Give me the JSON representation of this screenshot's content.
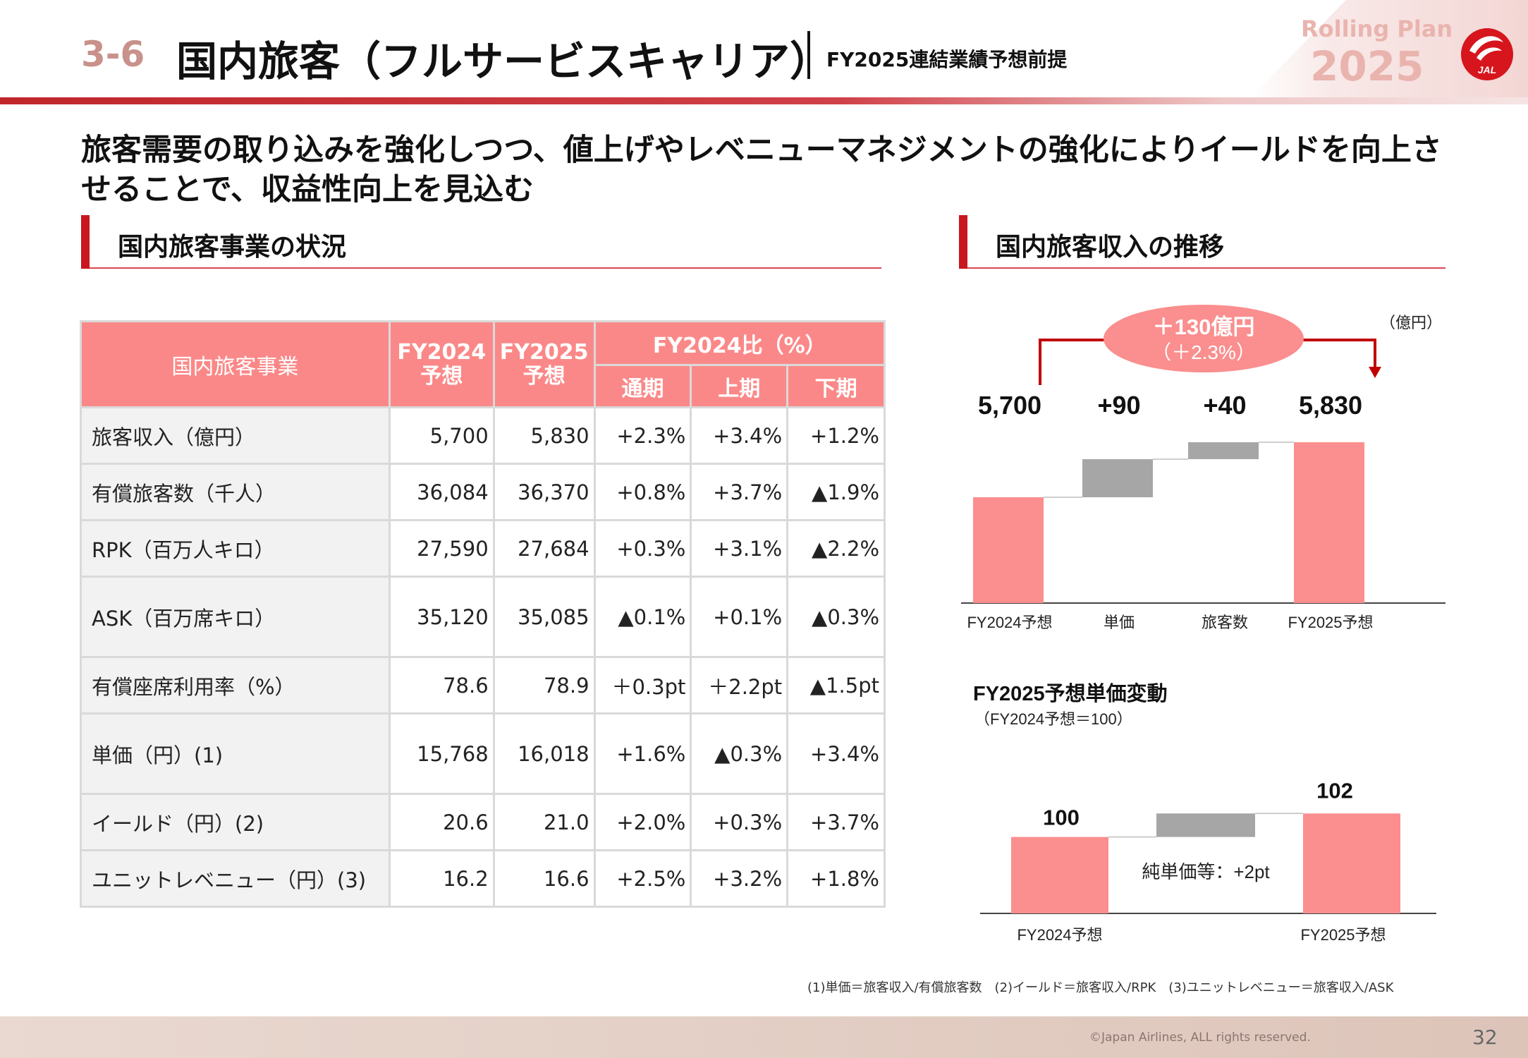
{
  "header": {
    "section_number": "3-6",
    "title": "国内旅客（フルサービスキャリア）",
    "subtitle": "FY2025連結業績予想前提",
    "plan_label": "Rolling Plan",
    "plan_year": "2025",
    "logo_text": "JAL"
  },
  "headline": "旅客需要の取り込みを強化しつつ、値上げやレベニューマネジメントの強化によりイールドを向上させることで、収益性向上を見込む",
  "left_section": {
    "title": "国内旅客事業の状況",
    "table": {
      "corner_label": "国内旅客事業",
      "col_fy2024": "FY2024\n予想",
      "col_fy2025": "FY2025\n予想",
      "comparison_group": "FY2024比（%）",
      "sub_columns": [
        "通期",
        "上期",
        "下期"
      ],
      "rows": [
        {
          "label": "旅客収入（億円）",
          "fy2024": "5,700",
          "fy2025": "5,830",
          "full": "+2.3%",
          "h1": "+3.4%",
          "h2": "+1.2%"
        },
        {
          "label": "有償旅客数（千人）",
          "fy2024": "36,084",
          "fy2025": "36,370",
          "full": "+0.8%",
          "h1": "+3.7%",
          "h2": "▲1.9%"
        },
        {
          "label": "RPK（百万人キロ）",
          "fy2024": "27,590",
          "fy2025": "27,684",
          "full": "+0.3%",
          "h1": "+3.1%",
          "h2": "▲2.2%"
        },
        {
          "label": "ASK（百万席キロ）",
          "fy2024": "35,120",
          "fy2025": "35,085",
          "full": "▲0.1%",
          "h1": "+0.1%",
          "h2": "▲0.3%"
        },
        {
          "label": "有償座席利用率（%）",
          "fy2024": "78.6",
          "fy2025": "78.9",
          "full": "＋0.3pt",
          "h1": "＋2.2pt",
          "h2": "▲1.5pt"
        },
        {
          "label": "単価（円）(1)",
          "fy2024": "15,768",
          "fy2025": "16,018",
          "full": "+1.6%",
          "h1": "▲0.3%",
          "h2": "+3.4%"
        },
        {
          "label": "イールド（円）(2)",
          "fy2024": "20.6",
          "fy2025": "21.0",
          "full": "+2.0%",
          "h1": "+0.3%",
          "h2": "+3.7%"
        },
        {
          "label": "ユニットレベニュー（円）(3)",
          "fy2024": "16.2",
          "fy2025": "16.6",
          "full": "+2.5%",
          "h1": "+3.2%",
          "h2": "+1.8%"
        }
      ]
    }
  },
  "right_section": {
    "title": "国内旅客収入の推移"
  },
  "chart_data": [
    {
      "type": "bar",
      "subtype": "waterfall",
      "unit_label": "（億円）",
      "categories": [
        "FY2024予想",
        "単価",
        "旅客数",
        "FY2025予想"
      ],
      "values": [
        5700,
        90,
        40,
        5830
      ],
      "value_labels": [
        "5,700",
        "+90",
        "+40",
        "5,830"
      ],
      "kinds": [
        "total",
        "delta",
        "delta",
        "total"
      ],
      "callout_line1": "＋130億円",
      "callout_line2": "（＋2.3%）",
      "colors": {
        "total": "#fb8e8e",
        "delta": "#a6a6a6",
        "arrow": "#c00000"
      }
    },
    {
      "type": "bar",
      "subtype": "waterfall",
      "title": "FY2025予想単価変動",
      "subtitle": "（FY2024予想＝100）",
      "categories": [
        "FY2024予想",
        "FY2025予想"
      ],
      "values": [
        100,
        102
      ],
      "value_labels": [
        "100",
        "102"
      ],
      "note": "純単価等：+2pt",
      "colors": {
        "total": "#fb8e8e",
        "delta": "#a6a6a6"
      }
    }
  ],
  "footnote": "(1)単価＝旅客収入/有償旅客数　(2)イールド＝旅客収入/RPK　(3)ユニットレベニュー＝旅客収入/ASK",
  "footer": {
    "copyright": "©Japan Airlines, ALL rights reserved.",
    "page_number": "32"
  }
}
